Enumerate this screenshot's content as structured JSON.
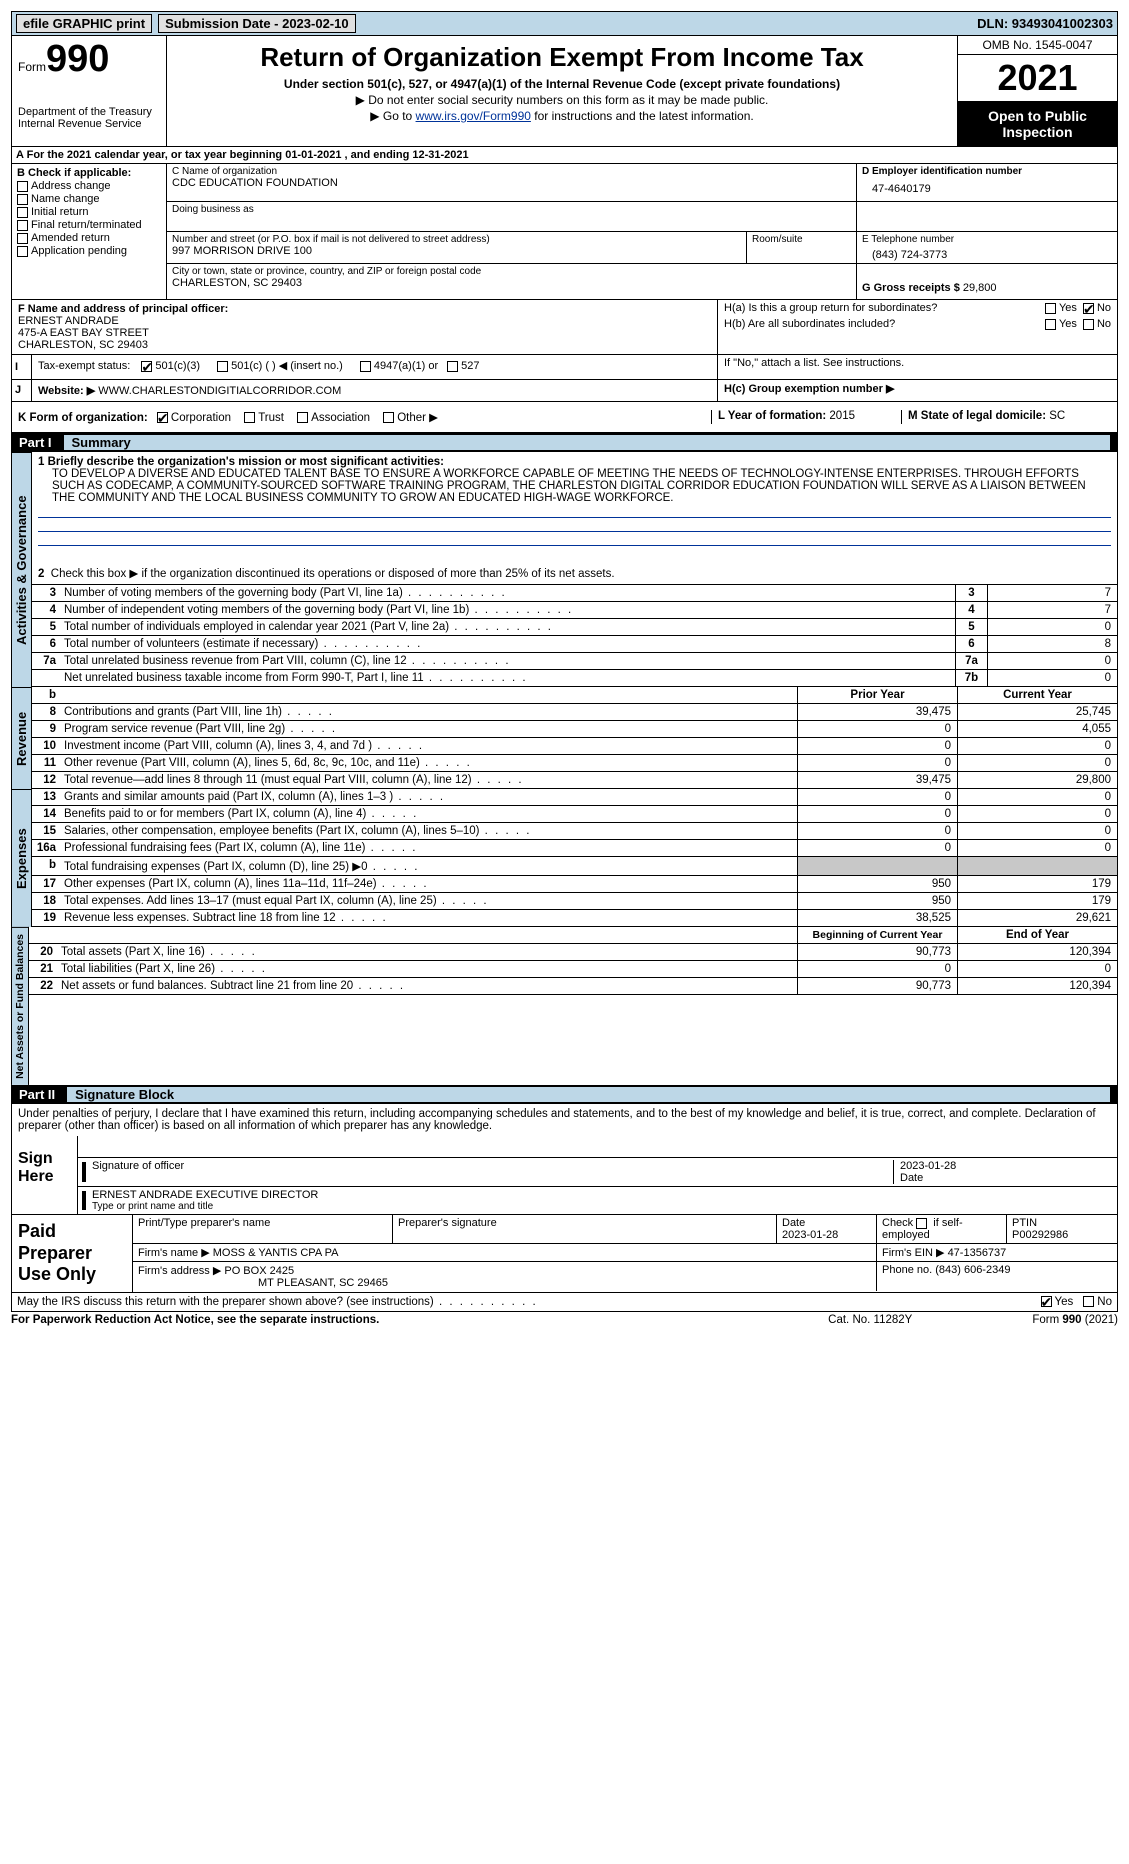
{
  "topbar": {
    "efile": "efile GRAPHIC print",
    "submission_label": "Submission Date - 2023-02-10",
    "dln": "DLN: 93493041002303"
  },
  "header": {
    "form_label": "Form",
    "form_num": "990",
    "title": "Return of Organization Exempt From Income Tax",
    "subtitle": "Under section 501(c), 527, or 4947(a)(1) of the Internal Revenue Code (except private foundations)",
    "note1": "▶ Do not enter social security numbers on this form as it may be made public.",
    "note2_pre": "▶ Go to ",
    "note2_link": "www.irs.gov/Form990",
    "note2_post": " for instructions and the latest information.",
    "dept": "Department of the Treasury",
    "irs": "Internal Revenue Service",
    "omb": "OMB No. 1545-0047",
    "year": "2021",
    "open_public": "Open to Public Inspection"
  },
  "line_a": "For the 2021 calendar year, or tax year beginning 01-01-2021    , and ending 12-31-2021",
  "check_b": {
    "title": "B Check if applicable:",
    "addr": "Address change",
    "name": "Name change",
    "initial": "Initial return",
    "final": "Final return/terminated",
    "amended": "Amended return",
    "app": "Application pending"
  },
  "block_c": {
    "name_label": "C Name of organization",
    "name": "CDC EDUCATION FOUNDATION",
    "dba_label": "Doing business as",
    "dba": "",
    "street_label": "Number and street (or P.O. box if mail is not delivered to street address)",
    "street": "997 MORRISON DRIVE 100",
    "room_label": "Room/suite",
    "city_label": "City or town, state or province, country, and ZIP or foreign postal code",
    "city": "CHARLESTON, SC  29403"
  },
  "block_d": {
    "label": "D Employer identification number",
    "value": "47-4640179"
  },
  "block_e": {
    "label": "E Telephone number",
    "value": "(843) 724-3773"
  },
  "block_g": {
    "label": "G Gross receipts $",
    "value": "29,800"
  },
  "block_f": {
    "label": "F  Name and address of principal officer:",
    "line1": "ERNEST ANDRADE",
    "line2": "475-A EAST BAY STREET",
    "line3": "CHARLESTON, SC  29403"
  },
  "block_h": {
    "ha": "H(a)  Is this a group return for subordinates?",
    "hb": "H(b)  Are all subordinates included?",
    "hb_note": "If \"No,\" attach a list. See instructions.",
    "hc": "H(c)  Group exemption number ▶",
    "yes": "Yes",
    "no": "No"
  },
  "block_i": {
    "label": "Tax-exempt status:",
    "c3": "501(c)(3)",
    "c": "501(c) (   ) ◀ (insert no.)",
    "a1": "4947(a)(1) or",
    "s527": "527"
  },
  "block_j": {
    "label": "Website: ▶",
    "value": "WWW.CHARLESTONDIGITIALCORRIDOR.COM"
  },
  "block_k": {
    "label": "K Form of organization:",
    "corp": "Corporation",
    "trust": "Trust",
    "assoc": "Association",
    "other": "Other ▶"
  },
  "block_l": {
    "label": "L Year of formation: ",
    "value": "2015"
  },
  "block_m": {
    "label": "M State of legal domicile: ",
    "value": "SC"
  },
  "part1": {
    "num": "Part I",
    "title": "Summary",
    "vert_ag": "Activities & Governance",
    "vert_rev": "Revenue",
    "vert_exp": "Expenses",
    "vert_na": "Net Assets or Fund Balances",
    "line1_label": "1  Briefly describe the organization's mission or most significant activities:",
    "mission": "TO DEVELOP A DIVERSE AND EDUCATED TALENT BASE TO ENSURE A WORKFORCE CAPABLE OF MEETING THE NEEDS OF TECHNOLOGY-INTENSE ENTERPRISES. THROUGH EFFORTS SUCH AS CODECAMP, A COMMUNITY-SOURCED SOFTWARE TRAINING PROGRAM, THE CHARLESTON DIGITAL CORRIDOR EDUCATION FOUNDATION WILL SERVE AS A LIAISON BETWEEN THE COMMUNITY AND THE LOCAL BUSINESS COMMUNITY TO GROW AN EDUCATED HIGH-WAGE WORKFORCE.",
    "line2": "Check this box ▶        if the organization discontinued its operations or disposed of more than 25% of its net assets.",
    "lines_gov": [
      {
        "n": "3",
        "d": "Number of voting members of the governing body (Part VI, line 1a)",
        "bn": "3",
        "v": "7"
      },
      {
        "n": "4",
        "d": "Number of independent voting members of the governing body (Part VI, line 1b)",
        "bn": "4",
        "v": "7"
      },
      {
        "n": "5",
        "d": "Total number of individuals employed in calendar year 2021 (Part V, line 2a)",
        "bn": "5",
        "v": "0"
      },
      {
        "n": "6",
        "d": "Total number of volunteers (estimate if necessary)",
        "bn": "6",
        "v": "8"
      },
      {
        "n": "7a",
        "d": "Total unrelated business revenue from Part VIII, column (C), line 12",
        "bn": "7a",
        "v": "0"
      },
      {
        "n": "",
        "d": "Net unrelated business taxable income from Form 990-T, Part I, line 11",
        "bn": "7b",
        "v": "0"
      }
    ],
    "col_prior": "Prior Year",
    "col_current": "Current Year",
    "lines_rev": [
      {
        "n": "8",
        "d": "Contributions and grants (Part VIII, line 1h)",
        "pv": "39,475",
        "cv": "25,745"
      },
      {
        "n": "9",
        "d": "Program service revenue (Part VIII, line 2g)",
        "pv": "0",
        "cv": "4,055"
      },
      {
        "n": "10",
        "d": "Investment income (Part VIII, column (A), lines 3, 4, and 7d )",
        "pv": "0",
        "cv": "0"
      },
      {
        "n": "11",
        "d": "Other revenue (Part VIII, column (A), lines 5, 6d, 8c, 9c, 10c, and 11e)",
        "pv": "0",
        "cv": "0"
      },
      {
        "n": "12",
        "d": "Total revenue—add lines 8 through 11 (must equal Part VIII, column (A), line 12)",
        "pv": "39,475",
        "cv": "29,800"
      }
    ],
    "lines_exp": [
      {
        "n": "13",
        "d": "Grants and similar amounts paid (Part IX, column (A), lines 1–3 )",
        "pv": "0",
        "cv": "0"
      },
      {
        "n": "14",
        "d": "Benefits paid to or for members (Part IX, column (A), line 4)",
        "pv": "0",
        "cv": "0"
      },
      {
        "n": "15",
        "d": "Salaries, other compensation, employee benefits (Part IX, column (A), lines 5–10)",
        "pv": "0",
        "cv": "0"
      },
      {
        "n": "16a",
        "d": "Professional fundraising fees (Part IX, column (A), line 11e)",
        "pv": "0",
        "cv": "0"
      },
      {
        "n": "b",
        "d": "Total fundraising expenses (Part IX, column (D), line 25) ▶0",
        "pv": "",
        "cv": "",
        "shaded": true
      },
      {
        "n": "17",
        "d": "Other expenses (Part IX, column (A), lines 11a–11d, 11f–24e)",
        "pv": "950",
        "cv": "179"
      },
      {
        "n": "18",
        "d": "Total expenses. Add lines 13–17 (must equal Part IX, column (A), line 25)",
        "pv": "950",
        "cv": "179"
      },
      {
        "n": "19",
        "d": "Revenue less expenses. Subtract line 18 from line 12",
        "pv": "38,525",
        "cv": "29,621"
      }
    ],
    "col_begin": "Beginning of Current Year",
    "col_end": "End of Year",
    "lines_na": [
      {
        "n": "20",
        "d": "Total assets (Part X, line 16)",
        "pv": "90,773",
        "cv": "120,394"
      },
      {
        "n": "21",
        "d": "Total liabilities (Part X, line 26)",
        "pv": "0",
        "cv": "0"
      },
      {
        "n": "22",
        "d": "Net assets or fund balances. Subtract line 21 from line 20",
        "pv": "90,773",
        "cv": "120,394"
      }
    ]
  },
  "part2": {
    "num": "Part II",
    "title": "Signature Block",
    "declaration": "Under penalties of perjury, I declare that I have examined this return, including accompanying schedules and statements, and to the best of my knowledge and belief, it is true, correct, and complete. Declaration of preparer (other than officer) is based on all information of which preparer has any knowledge.",
    "sign_here": "Sign Here",
    "sig_officer": "Signature of officer",
    "date": "Date",
    "sig_date": "2023-01-28",
    "name_title": "ERNEST ANDRADE  EXECUTIVE DIRECTOR",
    "type_name": "Type or print name and title",
    "paid_prep": "Paid Preparer Use Only",
    "print_name_label": "Print/Type preparer's name",
    "prep_sig_label": "Preparer's signature",
    "prep_date_label": "Date",
    "prep_date": "2023-01-28",
    "check_if": "Check         if self-employed",
    "ptin_label": "PTIN",
    "ptin": "P00292986",
    "firm_name_label": "Firm's name    ▶",
    "firm_name": "MOSS & YANTIS CPA PA",
    "firm_ein_label": "Firm's EIN ▶",
    "firm_ein": "47-1356737",
    "firm_addr_label": "Firm's address ▶",
    "firm_addr1": "PO BOX 2425",
    "firm_addr2": "MT PLEASANT, SC  29465",
    "phone_label": "Phone no.",
    "phone": "(843) 606-2349",
    "may_irs": "May the IRS discuss this return with the preparer shown above? (see instructions)",
    "yes": "Yes",
    "no": "No"
  },
  "footer": {
    "pra": "For Paperwork Reduction Act Notice, see the separate instructions.",
    "cat": "Cat. No. 11282Y",
    "form": "Form 990 (2021)"
  }
}
